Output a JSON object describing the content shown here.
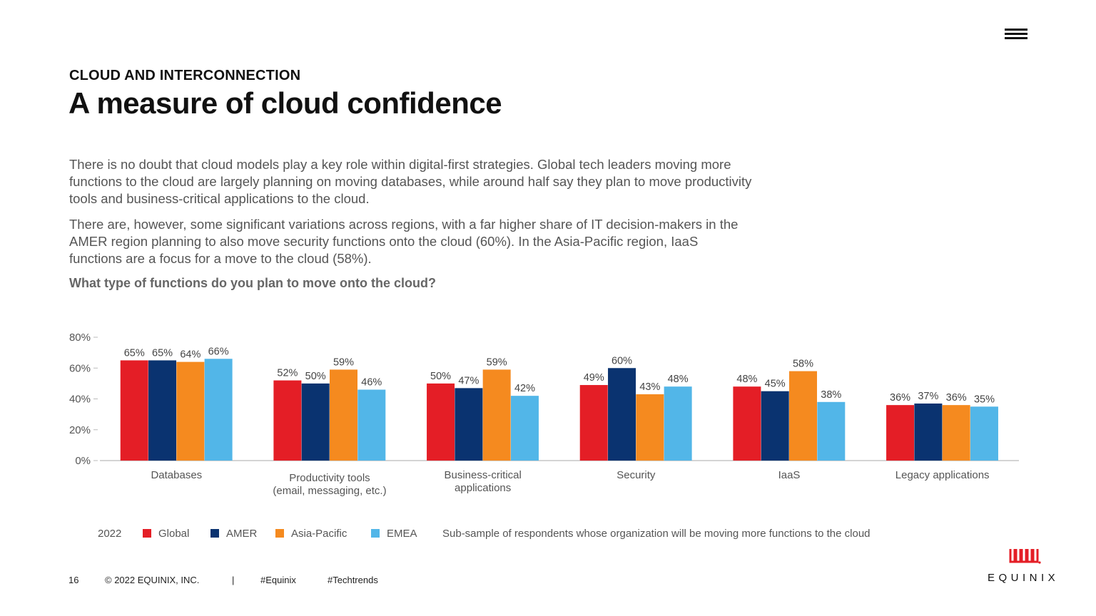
{
  "header": {
    "eyebrow": "CLOUD AND INTERCONNECTION",
    "title": "A measure of cloud confidence"
  },
  "body": {
    "paragraph1": "There is no doubt that cloud models play a key role within digital-first strategies. Global tech leaders moving more functions to the cloud are largely planning on moving databases, while around half say they plan to move productivity tools and business-critical applications to the cloud.",
    "paragraph2": "There are, however, some significant variations across regions, with a far higher share of IT decision-makers in the AMER region planning to also move security functions onto the cloud (60%). In the Asia-Pacific region, IaaS functions are a focus for a move to the cloud (58%).",
    "question": "What type of functions do you plan to move onto the cloud?"
  },
  "chart_data": {
    "type": "bar",
    "categories": [
      [
        "Databases"
      ],
      [
        "Productivity tools",
        "(email, messaging, etc.)"
      ],
      [
        "Business-critical",
        "applications"
      ],
      [
        "Security"
      ],
      [
        "IaaS"
      ],
      [
        "Legacy applications"
      ]
    ],
    "series": [
      {
        "name": "Global",
        "color": "#e41e26",
        "values": [
          65,
          52,
          50,
          49,
          48,
          36
        ]
      },
      {
        "name": "AMER",
        "color": "#0a3370",
        "values": [
          65,
          50,
          47,
          60,
          45,
          37
        ]
      },
      {
        "name": "Asia-Pacific",
        "color": "#f58a1f",
        "values": [
          64,
          59,
          59,
          43,
          58,
          36
        ]
      },
      {
        "name": "EMEA",
        "color": "#52b6e8",
        "values": [
          66,
          46,
          42,
          48,
          38,
          35
        ]
      }
    ],
    "yticks": [
      "0%",
      "20%",
      "40%",
      "60%",
      "80%"
    ],
    "ylim": [
      0,
      80
    ],
    "value_suffix": "%",
    "legend_year": "2022",
    "note": "Sub-sample of respondents whose organization will be moving more functions to the cloud"
  },
  "footer": {
    "page": "16",
    "copyright": "© 2022 EQUINIX, INC.",
    "separator": "|",
    "tag1": "#Equinix",
    "tag2": "#Techtrends"
  },
  "brand": {
    "name": "EQUINIX"
  }
}
